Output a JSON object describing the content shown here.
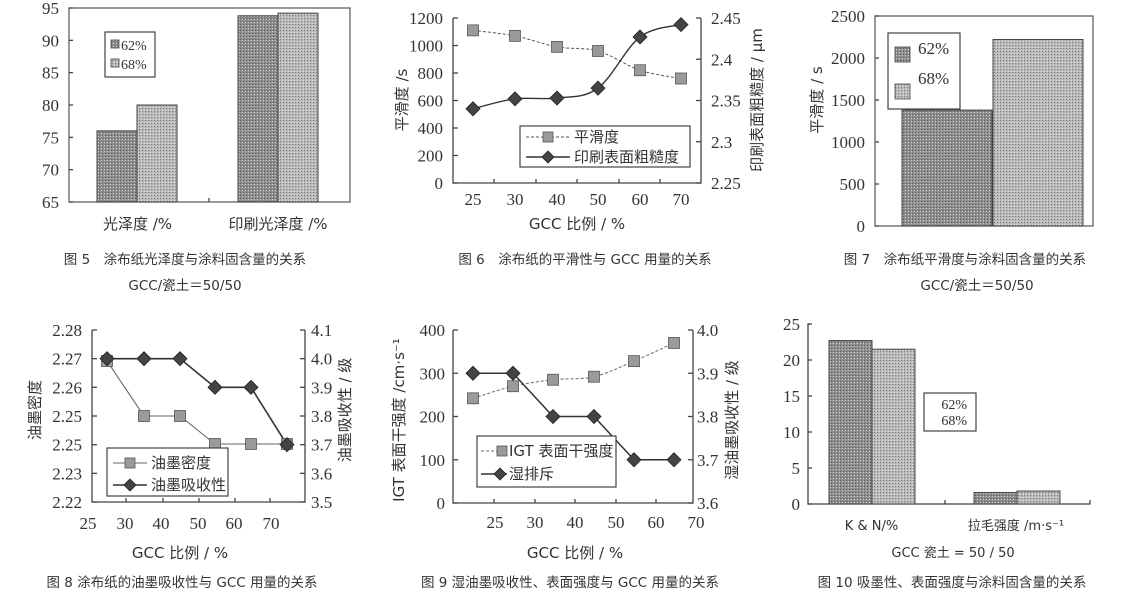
{
  "chart_data": [
    {
      "id": "fig5",
      "type": "bar",
      "title": "图 5　涂布纸光泽度与涂料固含量的关系",
      "subtitle": "GCC/瓷土＝50/50",
      "categories": [
        "光泽度 /%",
        "印刷光泽度 /%"
      ],
      "series": [
        {
          "name": "62%",
          "values": [
            76,
            93.8
          ]
        },
        {
          "name": "68%",
          "values": [
            80,
            94.2
          ]
        }
      ],
      "xlabel": "",
      "ylabel": "",
      "ylim": [
        65,
        95
      ],
      "yticks": [
        65,
        70,
        75,
        80,
        85,
        90,
        95
      ],
      "grid": false,
      "legend_position": "upper-left"
    },
    {
      "id": "fig6",
      "type": "line",
      "title": "图 6　涂布纸的平滑性与 GCC 用量的关系",
      "categories": [
        "25",
        "30",
        "40",
        "50",
        "60",
        "70"
      ],
      "series": [
        {
          "name": "平滑度",
          "axis": "left",
          "style": "dashed-square",
          "values": [
            1110,
            1070,
            990,
            960,
            820,
            760
          ]
        },
        {
          "name": "印刷表面粗糙度",
          "axis": "right",
          "style": "solid-diamond",
          "values": [
            2.34,
            2.352,
            2.353,
            2.365,
            2.427,
            2.442
          ]
        }
      ],
      "xlabel": "GCC 比例 / %",
      "ylabel": "平滑度 /s",
      "ylabel_right": "印刷表面粗糙度 / μm",
      "ylim": [
        0,
        1200
      ],
      "yticks": [
        0,
        200,
        400,
        600,
        800,
        1000,
        1200
      ],
      "ylim_right": [
        2.25,
        2.45
      ],
      "yticks_right": [
        "2.25",
        "2.3",
        "2.35",
        "2.4",
        "2.45"
      ],
      "grid": false,
      "legend_position": "lower-right"
    },
    {
      "id": "fig7",
      "type": "bar",
      "title": "图 7　涂布纸平滑度与涂料固含量的关系",
      "subtitle": "GCC/瓷土＝50/50",
      "categories": [
        ""
      ],
      "series": [
        {
          "name": "62%",
          "values": [
            1380
          ]
        },
        {
          "name": "68%",
          "values": [
            2220
          ]
        }
      ],
      "xlabel": "",
      "ylabel": "平滑度 / s",
      "ylim": [
        0,
        2500
      ],
      "yticks": [
        0,
        500,
        1000,
        1500,
        2000,
        2500
      ],
      "grid": false,
      "legend_position": "upper-left"
    },
    {
      "id": "fig8",
      "type": "line",
      "title": "图 8 涂布纸的油墨吸收性与 GCC 用量的关系",
      "xticks": [
        "25",
        "30",
        "40",
        "50",
        "60",
        "70"
      ],
      "series": [
        {
          "name": "油墨密度",
          "axis": "left",
          "style": "solid-square",
          "values": [
            2.27,
            2.25,
            2.25,
            2.24,
            2.24,
            2.24
          ]
        },
        {
          "name": "油墨吸收性",
          "axis": "right",
          "style": "solid-diamond",
          "values": [
            4.0,
            4.0,
            4.0,
            3.9,
            3.9,
            3.7
          ]
        }
      ],
      "xlabel": "GCC 比例 / %",
      "ylabel": "油墨密度",
      "ylabel_right": "油墨吸收性 / 级",
      "yticks": [
        "2.22",
        "2.23",
        "2.25",
        "2.25",
        "2.26",
        "2.27",
        "2.28"
      ],
      "ylim_right": [
        3.5,
        4.1
      ],
      "yticks_right": [
        "3.5",
        "3.6",
        "3.7",
        "3.8",
        "3.9",
        "4.0",
        "4.1"
      ],
      "grid": false,
      "legend_position": "lower-left"
    },
    {
      "id": "fig9",
      "type": "line",
      "title": "图 9 湿油墨吸收性、表面强度与 GCC 用量的关系",
      "xticks": [
        "25",
        "30",
        "40",
        "50",
        "60",
        "70"
      ],
      "series": [
        {
          "name": "IGT 表面干强度",
          "axis": "left",
          "style": "dashed-square",
          "values": [
            242,
            270,
            285,
            292,
            328,
            370
          ]
        },
        {
          "name": "湿排斥",
          "axis": "right",
          "style": "solid-diamond",
          "values": [
            3.9,
            3.9,
            3.8,
            3.8,
            3.7,
            3.7
          ]
        }
      ],
      "xlabel": "GCC 比例 / %",
      "ylabel": "IGT 表面干强度 /cm·s⁻¹",
      "ylabel_right": "湿油墨吸收性 / 级",
      "ylim": [
        0,
        400
      ],
      "yticks": [
        0,
        100,
        200,
        300,
        400
      ],
      "ylim_right": [
        3.6,
        4.0
      ],
      "yticks_right": [
        "3.6",
        "3.7",
        "3.8",
        "3.9",
        "4.0"
      ],
      "grid": false,
      "legend_position": "lower-left"
    },
    {
      "id": "fig10",
      "type": "bar",
      "title": "图 10 吸墨性、表面强度与涂料固含量的关系",
      "categories": [
        "K & N/%",
        "拉毛强度 /m·s⁻¹"
      ],
      "series": [
        {
          "name": "62%",
          "values": [
            22.7,
            1.6
          ]
        },
        {
          "name": "68%",
          "values": [
            21.5,
            1.8
          ]
        }
      ],
      "xlabel": "GCC 瓷土 = 50 / 50",
      "ylabel": "",
      "ylim": [
        0,
        25
      ],
      "yticks": [
        0,
        5,
        10,
        15,
        20,
        25
      ],
      "grid": false,
      "legend_position": "center-right"
    }
  ],
  "colors": {
    "bar_dark": "#8c8c8c",
    "bar_light": "#b4b4b4",
    "line": "#3a3a3a",
    "marker_square": "#9a9a9a",
    "marker_diamond": "#3c3c3c"
  }
}
